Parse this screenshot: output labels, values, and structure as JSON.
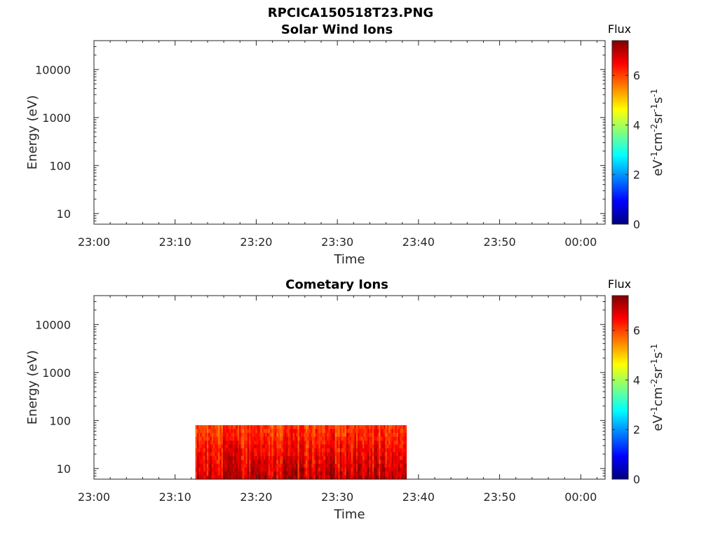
{
  "figure_title": "RPCICA150518T23.PNG",
  "chart_data": [
    {
      "type": "heatmap",
      "title": "Solar Wind Ions",
      "xlabel": "Time",
      "ylabel": "Energy (eV)",
      "x_ticks": [
        "23:00",
        "23:10",
        "23:20",
        "23:30",
        "23:40",
        "23:50",
        "00:00"
      ],
      "x_range_minutes": [
        0,
        63
      ],
      "y_scale": "log",
      "y_ticks": [
        "10",
        "100",
        "1000",
        "10000"
      ],
      "y_range": [
        6,
        40000
      ],
      "colorbar": {
        "title": "Flux",
        "label": "eV-1cm-2sr-1s-1",
        "ticks": [
          "0",
          "2",
          "4",
          "6"
        ],
        "range": [
          0,
          7.4
        ],
        "colormap": "jet"
      },
      "data_blocks": []
    },
    {
      "type": "heatmap",
      "title": "Cometary Ions",
      "xlabel": "Time",
      "ylabel": "Energy (eV)",
      "x_ticks": [
        "23:00",
        "23:10",
        "23:20",
        "23:30",
        "23:40",
        "23:50",
        "00:00"
      ],
      "x_range_minutes": [
        0,
        63
      ],
      "y_scale": "log",
      "y_ticks": [
        "10",
        "100",
        "1000",
        "10000"
      ],
      "y_range": [
        6,
        40000
      ],
      "colorbar": {
        "title": "Flux",
        "label": "eV-1cm-2sr-1s-1",
        "ticks": [
          "0",
          "2",
          "4",
          "6"
        ],
        "range": [
          0,
          7.4
        ],
        "colormap": "jet"
      },
      "data_blocks": [
        {
          "t_start_min": 12.5,
          "t_end_min": 38.5,
          "energy_min_eV": 6,
          "energy_max_eV": 80,
          "flux_range": [
            3.5,
            7.4
          ],
          "dominant_flux": 6.2
        }
      ]
    }
  ]
}
